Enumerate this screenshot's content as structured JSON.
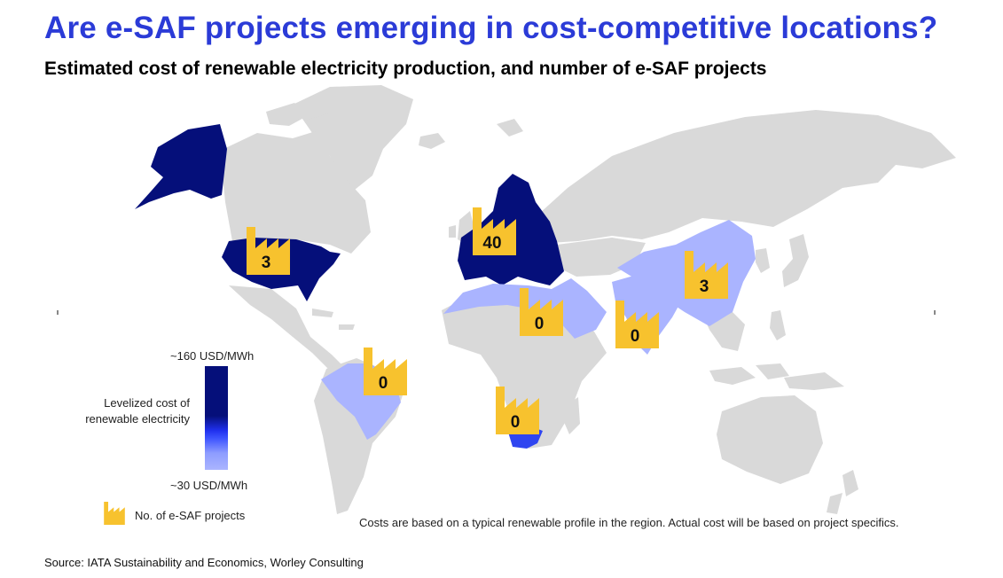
{
  "header": {
    "title": "Are e-SAF projects emerging in cost-competitive locations?",
    "subtitle": "Estimated cost of renewable electricity production, and number of e-SAF projects"
  },
  "colors": {
    "title": "#2b3bd7",
    "land_default": "#d9d9d9",
    "high_cost": "#050f7a",
    "mid_cost": "#2f45f0",
    "low_cost": "#aab4ff",
    "factory_icon": "#f7c22e"
  },
  "legend": {
    "max_label": "~160 USD/MWh",
    "min_label": "~30 USD/MWh",
    "description_line1": "Levelized cost of",
    "description_line2": "renewable electricity",
    "projects_label": "No. of e-SAF projects",
    "icon": "factory-icon"
  },
  "regions": [
    {
      "name": "Alaska",
      "cost_level": "high"
    },
    {
      "name": "United States",
      "cost_level": "high",
      "projects": "3"
    },
    {
      "name": "Europe",
      "cost_level": "high",
      "projects": "40"
    },
    {
      "name": "Brazil",
      "cost_level": "low",
      "projects": "0"
    },
    {
      "name": "North Africa & Middle East",
      "cost_level": "low",
      "projects": "0"
    },
    {
      "name": "India",
      "cost_level": "low",
      "projects": "0"
    },
    {
      "name": "China",
      "cost_level": "low",
      "projects": "3"
    },
    {
      "name": "South Africa",
      "cost_level": "mid",
      "projects": "0"
    }
  ],
  "footer": {
    "note": "Costs are based on a typical renewable profile in the region. Actual cost will be based on project specifics.",
    "source": "Source: IATA Sustainability and Economics, Worley Consulting"
  }
}
